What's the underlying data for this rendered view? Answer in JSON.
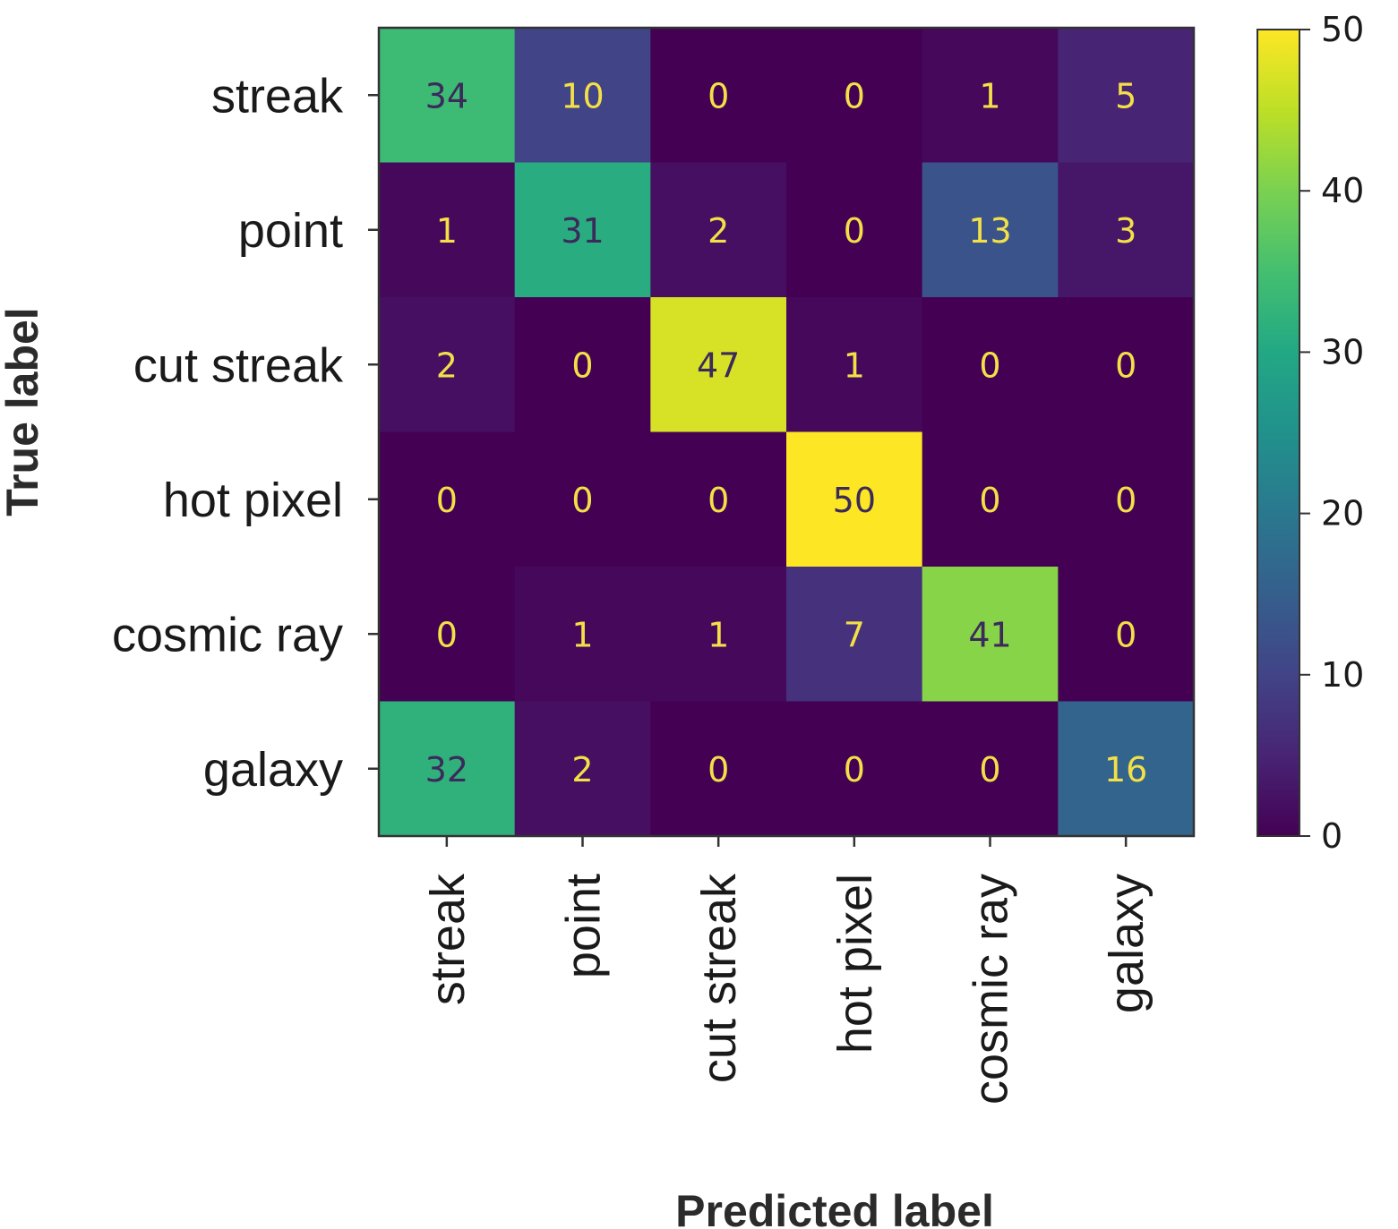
{
  "chart_data": {
    "type": "heatmap",
    "title": "",
    "xlabel": "Predicted label",
    "ylabel": "True label",
    "row_labels": [
      "streak",
      "point",
      "cut streak",
      "hot pixel",
      "cosmic ray",
      "galaxy"
    ],
    "col_labels": [
      "streak",
      "point",
      "cut streak",
      "hot pixel",
      "cosmic ray",
      "galaxy"
    ],
    "values": [
      [
        34,
        10,
        0,
        0,
        1,
        5
      ],
      [
        1,
        31,
        2,
        0,
        13,
        3
      ],
      [
        2,
        0,
        47,
        1,
        0,
        0
      ],
      [
        0,
        0,
        0,
        50,
        0,
        0
      ],
      [
        0,
        1,
        1,
        7,
        41,
        0
      ],
      [
        32,
        2,
        0,
        0,
        0,
        16
      ]
    ],
    "colormap": "viridis",
    "colorbar": {
      "range": [
        0,
        50
      ],
      "ticks": [
        0,
        10,
        20,
        30,
        40,
        50
      ]
    },
    "grid": false
  }
}
